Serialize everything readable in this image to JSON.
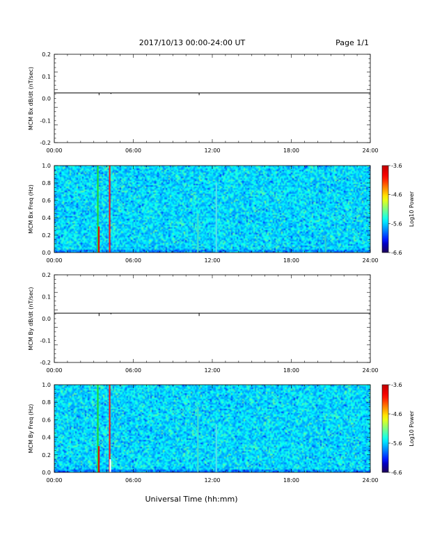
{
  "page": {
    "title": "2017/10/13  00:00-24:00 UT",
    "page_label": "Page 1/1",
    "xlabel": "Universal Time (hh:mm)"
  },
  "chart_data": [
    {
      "type": "line",
      "ylabel": "MCM Bx dB/dt (nT/sec)",
      "ylim": [
        -0.2,
        0.2
      ],
      "yticks": [
        "0.2",
        "0.1",
        "0.0",
        "-0.1",
        "-0.2"
      ],
      "xlim": [
        0,
        24
      ],
      "xticks": [
        "00:00",
        "06:00",
        "12:00",
        "18:00",
        "24:00"
      ],
      "baseline": 0.025,
      "spikes": [
        {
          "t": 3.4,
          "v": 0.015
        },
        {
          "t": 4.3,
          "v": 0.02
        },
        {
          "t": 11.0,
          "v": 0.015
        },
        {
          "t": 12.4,
          "v": 0.024
        }
      ]
    },
    {
      "type": "heatmap",
      "ylabel": "MCM Bx Freq (Hz)",
      "ylim": [
        0,
        1
      ],
      "yticks": [
        "1.0",
        "0.8",
        "0.6",
        "0.4",
        "0.2",
        "0.0"
      ],
      "xlim": [
        0,
        24
      ],
      "xticks": [
        "00:00",
        "06:00",
        "12:00",
        "18:00",
        "24:00"
      ],
      "colorbar": {
        "label": "Log10 Power",
        "range": [
          -6.6,
          -3.6
        ],
        "ticks": [
          "-3.6",
          "-4.6",
          "-5.6",
          "-6.6"
        ]
      },
      "bands": [
        {
          "t": 3.3,
          "color": "#22dd33",
          "hi": 1.0
        },
        {
          "t": 3.38,
          "color": "#dd1111",
          "hi": 0.3
        },
        {
          "t": 4.2,
          "color": "#ee2222",
          "hi": 1.0
        },
        {
          "t": 10.9,
          "color": "#44ddcc",
          "hi": 0.45
        },
        {
          "t": 12.3,
          "color": "#55ddee",
          "hi": 0.8
        },
        {
          "t": 20.6,
          "color": "#33cccc",
          "hi": 0.2
        }
      ]
    },
    {
      "type": "line",
      "ylabel": "MCM By dB/dt (nT/sec)",
      "ylim": [
        -0.2,
        0.2
      ],
      "yticks": [
        "0.2",
        "0.1",
        "0.0",
        "-0.1",
        "-0.2"
      ],
      "xlim": [
        0,
        24
      ],
      "xticks": [
        "00:00",
        "06:00",
        "12:00",
        "18:00",
        "24:00"
      ],
      "baseline": 0.025,
      "spikes": [
        {
          "t": 3.4,
          "v": 0.012
        },
        {
          "t": 4.3,
          "v": 0.02
        },
        {
          "t": 11.0,
          "v": 0.012
        }
      ]
    },
    {
      "type": "heatmap",
      "ylabel": "MCM By Freq (Hz)",
      "ylim": [
        0,
        1
      ],
      "yticks": [
        "1.0",
        "0.8",
        "0.6",
        "0.4",
        "0.2",
        "0.0"
      ],
      "xlim": [
        0,
        24
      ],
      "xticks": [
        "00:00",
        "06:00",
        "12:00",
        "18:00",
        "24:00"
      ],
      "colorbar": {
        "label": "Log10 Power",
        "range": [
          -6.6,
          -3.6
        ],
        "ticks": [
          "-3.6",
          "-4.6",
          "-5.6",
          "-6.6"
        ]
      },
      "bands": [
        {
          "t": 3.3,
          "color": "#22dd33",
          "hi": 1.0
        },
        {
          "t": 3.38,
          "color": "#dd1111",
          "hi": 0.3
        },
        {
          "t": 4.2,
          "color": "#ee2222",
          "hi": 1.0
        },
        {
          "t": 4.25,
          "color": "#ffffff",
          "hi": 0.15
        },
        {
          "t": 10.9,
          "color": "#44ddcc",
          "hi": 0.75
        },
        {
          "t": 12.3,
          "color": "#55ddee",
          "hi": 0.55
        }
      ]
    }
  ]
}
